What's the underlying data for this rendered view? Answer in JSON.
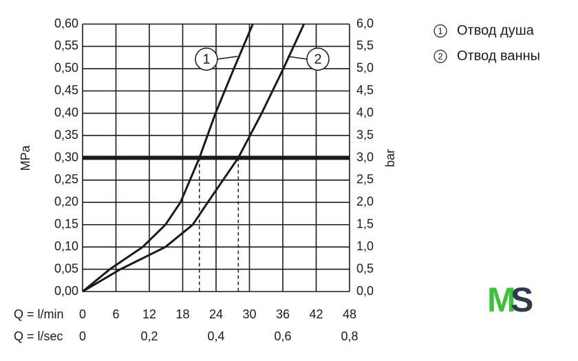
{
  "chart_data": {
    "type": "line",
    "x_label": "Q = l/min",
    "x2_label": "Q = l/sec",
    "y_label": "MPa",
    "y2_label": "bar",
    "xlim": [
      0,
      48
    ],
    "xticks": [
      0,
      6,
      12,
      18,
      24,
      30,
      36,
      42,
      48
    ],
    "x2lim": [
      0,
      0.8
    ],
    "x2ticks": [
      0,
      {
        "value": 0.2,
        "label": "0,2"
      },
      {
        "value": 0.4,
        "label": "0,4"
      },
      {
        "value": 0.6,
        "label": "0,6"
      },
      {
        "value": 0.8,
        "label": "0,8"
      }
    ],
    "ylim": [
      0,
      0.6
    ],
    "yticks": [
      {
        "value": 0,
        "label": "0,00"
      },
      {
        "value": 0.05,
        "label": "0,05"
      },
      {
        "value": 0.1,
        "label": "0,10"
      },
      {
        "value": 0.15,
        "label": "0,15"
      },
      {
        "value": 0.2,
        "label": "0,20"
      },
      {
        "value": 0.25,
        "label": "0,25"
      },
      {
        "value": 0.3,
        "label": "0,30"
      },
      {
        "value": 0.35,
        "label": "0,35"
      },
      {
        "value": 0.4,
        "label": "0,40"
      },
      {
        "value": 0.45,
        "label": "0,45"
      },
      {
        "value": 0.5,
        "label": "0,50"
      },
      {
        "value": 0.55,
        "label": "0,55"
      },
      {
        "value": 0.6,
        "label": "0,60"
      }
    ],
    "y2lim": [
      0,
      6
    ],
    "y2ticks": [
      {
        "value": 0,
        "label": "0,0"
      },
      {
        "value": 0.5,
        "label": "0,5"
      },
      {
        "value": 1,
        "label": "1,0"
      },
      {
        "value": 1.5,
        "label": "1,5"
      },
      {
        "value": 2,
        "label": "2,0"
      },
      {
        "value": 2.5,
        "label": "2,5"
      },
      {
        "value": 3,
        "label": "3,0"
      },
      {
        "value": 3.5,
        "label": "3,5"
      },
      {
        "value": 4,
        "label": "4,0"
      },
      {
        "value": 4.5,
        "label": "4,5"
      },
      {
        "value": 5,
        "label": "5,0"
      },
      {
        "value": 5.5,
        "label": "5,5"
      },
      {
        "value": 6,
        "label": "6,0"
      }
    ],
    "grid": true,
    "reference_y": 0.3,
    "drop_lines_x": [
      21,
      28
    ],
    "series": [
      {
        "name": "Отвод душа",
        "label": "1",
        "color": "#1a1a1a",
        "x": [
          0,
          4.9,
          10.8,
          14.9,
          17.6,
          21,
          23.9,
          27.2,
          30.6
        ],
        "values": [
          0,
          0.05,
          0.1,
          0.15,
          0.2,
          0.3,
          0.4,
          0.5,
          0.6
        ]
      },
      {
        "name": "Отвод ванны",
        "label": "2",
        "color": "#1a1a1a",
        "x": [
          0,
          6.8,
          14.9,
          19.8,
          22.5,
          28,
          32.2,
          36.1,
          39.8
        ],
        "values": [
          0,
          0.05,
          0.1,
          0.15,
          0.2,
          0.3,
          0.4,
          0.5,
          0.6
        ]
      }
    ],
    "logo": [
      "M",
      "S"
    ]
  }
}
